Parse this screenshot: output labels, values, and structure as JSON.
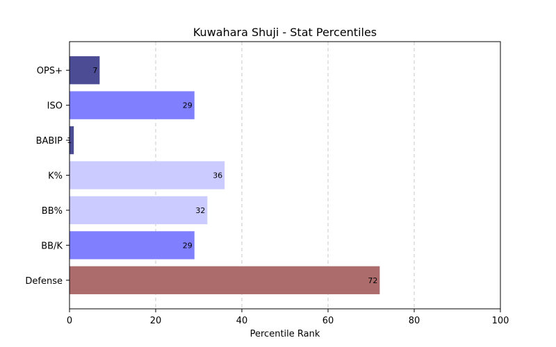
{
  "chart_data": {
    "type": "bar",
    "orientation": "horizontal",
    "title": "Kuwahara Shuji - Stat Percentiles",
    "xlabel": "Percentile Rank",
    "ylabel": "",
    "xlim": [
      0,
      100
    ],
    "xticks": [
      0,
      20,
      40,
      60,
      80,
      100
    ],
    "grid": "x-dashed",
    "categories": [
      "OPS+",
      "ISO",
      "BABIP",
      "K%",
      "BB%",
      "BB/K",
      "Defense"
    ],
    "values": [
      7,
      29,
      1,
      36,
      32,
      29,
      72
    ],
    "bar_colors": [
      "#4b4c94",
      "#8080ff",
      "#4b4c94",
      "#cccbff",
      "#cccbff",
      "#8080ff",
      "#ac6c6b"
    ]
  }
}
